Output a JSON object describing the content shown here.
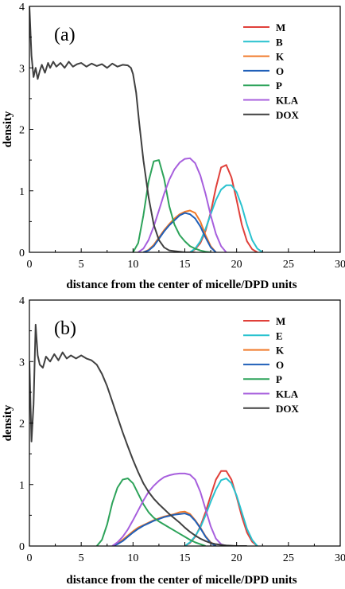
{
  "chart_data": [
    {
      "type": "line",
      "panel_label": "(a)",
      "xlabel": "distance from the center of micelle/DPD units",
      "ylabel": "density",
      "xlim": [
        0,
        30
      ],
      "ylim": [
        0,
        4
      ],
      "xticks": [
        0,
        5,
        10,
        15,
        20,
        25,
        30
      ],
      "yticks": [
        0,
        1,
        2,
        3,
        4
      ],
      "grid": false,
      "legend_position": "top-right",
      "series": [
        {
          "name": "M",
          "color": "#e0403a",
          "x": [
            15.5,
            16,
            16.5,
            17,
            17.5,
            18,
            18.5,
            19,
            19.5,
            20,
            20.5,
            21,
            21.5,
            22
          ],
          "y": [
            0,
            0.05,
            0.15,
            0.35,
            0.65,
            1.05,
            1.38,
            1.42,
            1.22,
            0.85,
            0.45,
            0.18,
            0.05,
            0
          ]
        },
        {
          "name": "B",
          "color": "#29c2cf",
          "x": [
            15.5,
            16,
            16.5,
            17,
            17.5,
            18,
            18.5,
            19,
            19.5,
            20,
            20.5,
            21,
            21.5,
            22,
            22.5
          ],
          "y": [
            0,
            0.06,
            0.18,
            0.38,
            0.62,
            0.85,
            1.02,
            1.09,
            1.09,
            0.98,
            0.75,
            0.45,
            0.2,
            0.06,
            0
          ]
        },
        {
          "name": "K",
          "color": "#f07a2a",
          "x": [
            11,
            11.5,
            12,
            12.5,
            13,
            13.5,
            14,
            14.5,
            15,
            15.5,
            16,
            16.5,
            17,
            17.5,
            18
          ],
          "y": [
            0,
            0.04,
            0.12,
            0.24,
            0.36,
            0.46,
            0.55,
            0.62,
            0.66,
            0.68,
            0.64,
            0.5,
            0.28,
            0.1,
            0
          ]
        },
        {
          "name": "O",
          "color": "#1f5fb8",
          "x": [
            11,
            11.5,
            12,
            12.5,
            13,
            13.5,
            14,
            14.5,
            15,
            15.5,
            16,
            16.5,
            17,
            17.5,
            18
          ],
          "y": [
            0,
            0.03,
            0.1,
            0.22,
            0.34,
            0.44,
            0.52,
            0.6,
            0.64,
            0.62,
            0.55,
            0.42,
            0.24,
            0.08,
            0
          ]
        },
        {
          "name": "P",
          "color": "#2da35a",
          "x": [
            10,
            10.5,
            11,
            11.5,
            12,
            12.5,
            13,
            13.5,
            14,
            14.5,
            15,
            15.5,
            16,
            16.5,
            17,
            17.5
          ],
          "y": [
            0,
            0.15,
            0.6,
            1.15,
            1.48,
            1.5,
            1.2,
            0.75,
            0.45,
            0.28,
            0.18,
            0.1,
            0.06,
            0.03,
            0.01,
            0
          ]
        },
        {
          "name": "KLA",
          "color": "#a75fdd",
          "x": [
            10.5,
            11,
            11.5,
            12,
            12.5,
            13,
            13.5,
            14,
            14.5,
            15,
            15.5,
            16,
            16.5,
            17,
            17.5,
            18,
            18.5,
            19
          ],
          "y": [
            0,
            0.06,
            0.2,
            0.42,
            0.68,
            0.95,
            1.18,
            1.35,
            1.46,
            1.52,
            1.53,
            1.45,
            1.25,
            0.95,
            0.6,
            0.3,
            0.1,
            0
          ]
        },
        {
          "name": "DOX",
          "color": "#404040",
          "x": [
            0,
            0.2,
            0.4,
            0.6,
            0.8,
            1,
            1.2,
            1.5,
            1.8,
            2,
            2.3,
            2.6,
            3,
            3.4,
            3.8,
            4.2,
            4.6,
            5,
            5.5,
            6,
            6.5,
            7,
            7.5,
            8,
            8.5,
            9,
            9.5,
            9.8,
            10,
            10.3,
            10.6,
            11,
            11.5,
            12,
            12.5,
            13,
            13.5,
            14,
            14.5,
            15,
            16
          ],
          "y": [
            4,
            3.2,
            2.85,
            3,
            2.82,
            2.95,
            3.05,
            2.92,
            3.08,
            3,
            3.1,
            3.02,
            3.08,
            3.0,
            3.1,
            3.02,
            3.06,
            3.08,
            3.02,
            3.07,
            3.03,
            3.06,
            3.0,
            3.07,
            3.02,
            3.05,
            3.04,
            3.0,
            2.9,
            2.6,
            2.1,
            1.5,
            0.9,
            0.45,
            0.2,
            0.08,
            0.03,
            0.02,
            0.01,
            0,
            0
          ]
        }
      ]
    },
    {
      "type": "line",
      "panel_label": "(b)",
      "xlabel": "distance from the center of micelle/DPD units",
      "ylabel": "density",
      "xlim": [
        0,
        30
      ],
      "ylim": [
        0,
        4
      ],
      "xticks": [
        0,
        5,
        10,
        15,
        20,
        25,
        30
      ],
      "yticks": [
        0,
        1,
        2,
        3,
        4
      ],
      "grid": false,
      "legend_position": "top-right",
      "series": [
        {
          "name": "M",
          "color": "#e0403a",
          "x": [
            15,
            15.5,
            16,
            16.5,
            17,
            17.5,
            18,
            18.5,
            19,
            19.5,
            20,
            20.5,
            21,
            21.5,
            22
          ],
          "y": [
            0,
            0.05,
            0.15,
            0.32,
            0.55,
            0.82,
            1.08,
            1.22,
            1.22,
            1.08,
            0.8,
            0.48,
            0.22,
            0.07,
            0
          ]
        },
        {
          "name": "E",
          "color": "#29c2cf",
          "x": [
            15,
            15.5,
            16,
            16.5,
            17,
            17.5,
            18,
            18.5,
            19,
            19.5,
            20,
            20.5,
            21,
            21.5,
            22
          ],
          "y": [
            0,
            0.06,
            0.16,
            0.3,
            0.5,
            0.72,
            0.92,
            1.07,
            1.1,
            1.02,
            0.82,
            0.55,
            0.28,
            0.1,
            0
          ]
        },
        {
          "name": "K",
          "color": "#f07a2a",
          "x": [
            8,
            8.5,
            9,
            9.5,
            10,
            10.5,
            11,
            11.5,
            12,
            12.5,
            13,
            13.5,
            14,
            14.5,
            15,
            15.5,
            16,
            16.5,
            17,
            17.5,
            18
          ],
          "y": [
            0,
            0.04,
            0.1,
            0.17,
            0.24,
            0.3,
            0.34,
            0.38,
            0.42,
            0.45,
            0.48,
            0.5,
            0.52,
            0.55,
            0.56,
            0.52,
            0.42,
            0.3,
            0.16,
            0.06,
            0
          ]
        },
        {
          "name": "O",
          "color": "#1f5fb8",
          "x": [
            8,
            8.5,
            9,
            9.5,
            10,
            10.5,
            11,
            11.5,
            12,
            12.5,
            13,
            13.5,
            14,
            14.5,
            15,
            15.5,
            16,
            16.5,
            17,
            17.5,
            18
          ],
          "y": [
            0,
            0.03,
            0.08,
            0.15,
            0.22,
            0.28,
            0.33,
            0.37,
            0.41,
            0.44,
            0.47,
            0.49,
            0.51,
            0.52,
            0.53,
            0.5,
            0.41,
            0.29,
            0.15,
            0.05,
            0
          ]
        },
        {
          "name": "P",
          "color": "#2da35a",
          "x": [
            6.5,
            7,
            7.5,
            8,
            8.5,
            9,
            9.5,
            10,
            10.5,
            11,
            11.5,
            12,
            12.5,
            13,
            13.5,
            14,
            14.5,
            15,
            15.5,
            16,
            16.5,
            17
          ],
          "y": [
            0,
            0.1,
            0.35,
            0.7,
            0.95,
            1.08,
            1.1,
            1.02,
            0.85,
            0.68,
            0.55,
            0.46,
            0.4,
            0.35,
            0.3,
            0.25,
            0.2,
            0.15,
            0.1,
            0.06,
            0.03,
            0
          ]
        },
        {
          "name": "KLA",
          "color": "#a75fdd",
          "x": [
            8,
            8.5,
            9,
            9.5,
            10,
            10.5,
            11,
            11.5,
            12,
            12.5,
            13,
            13.5,
            14,
            14.5,
            15,
            15.5,
            16,
            16.5,
            17,
            17.5,
            18,
            18.5,
            19
          ],
          "y": [
            0,
            0.06,
            0.15,
            0.27,
            0.42,
            0.58,
            0.74,
            0.88,
            0.98,
            1.06,
            1.12,
            1.15,
            1.17,
            1.18,
            1.18,
            1.16,
            1.08,
            0.88,
            0.6,
            0.32,
            0.12,
            0.03,
            0
          ]
        },
        {
          "name": "DOX",
          "color": "#404040",
          "x": [
            0,
            0.2,
            0.4,
            0.6,
            0.8,
            1,
            1.3,
            1.6,
            2,
            2.4,
            2.8,
            3.2,
            3.6,
            4,
            4.5,
            5,
            5.5,
            6,
            6.5,
            7,
            7.5,
            8,
            8.5,
            9,
            9.5,
            10,
            10.5,
            11,
            11.5,
            12,
            12.5,
            13,
            13.5,
            14,
            14.5,
            15,
            15.5,
            16,
            16.5,
            17,
            17.5,
            18,
            18.5,
            19,
            19.5,
            20,
            20.5,
            21
          ],
          "y": [
            3.0,
            1.7,
            2.3,
            3.6,
            3.1,
            2.95,
            2.9,
            3.08,
            3.0,
            3.12,
            3.02,
            3.15,
            3.05,
            3.1,
            3.05,
            3.1,
            3.05,
            3.02,
            2.95,
            2.8,
            2.6,
            2.35,
            2.1,
            1.85,
            1.62,
            1.4,
            1.2,
            1.02,
            0.88,
            0.77,
            0.68,
            0.6,
            0.52,
            0.45,
            0.38,
            0.3,
            0.23,
            0.17,
            0.12,
            0.08,
            0.05,
            0.03,
            0.02,
            0.01,
            0.005,
            0,
            0,
            0
          ]
        }
      ]
    }
  ]
}
